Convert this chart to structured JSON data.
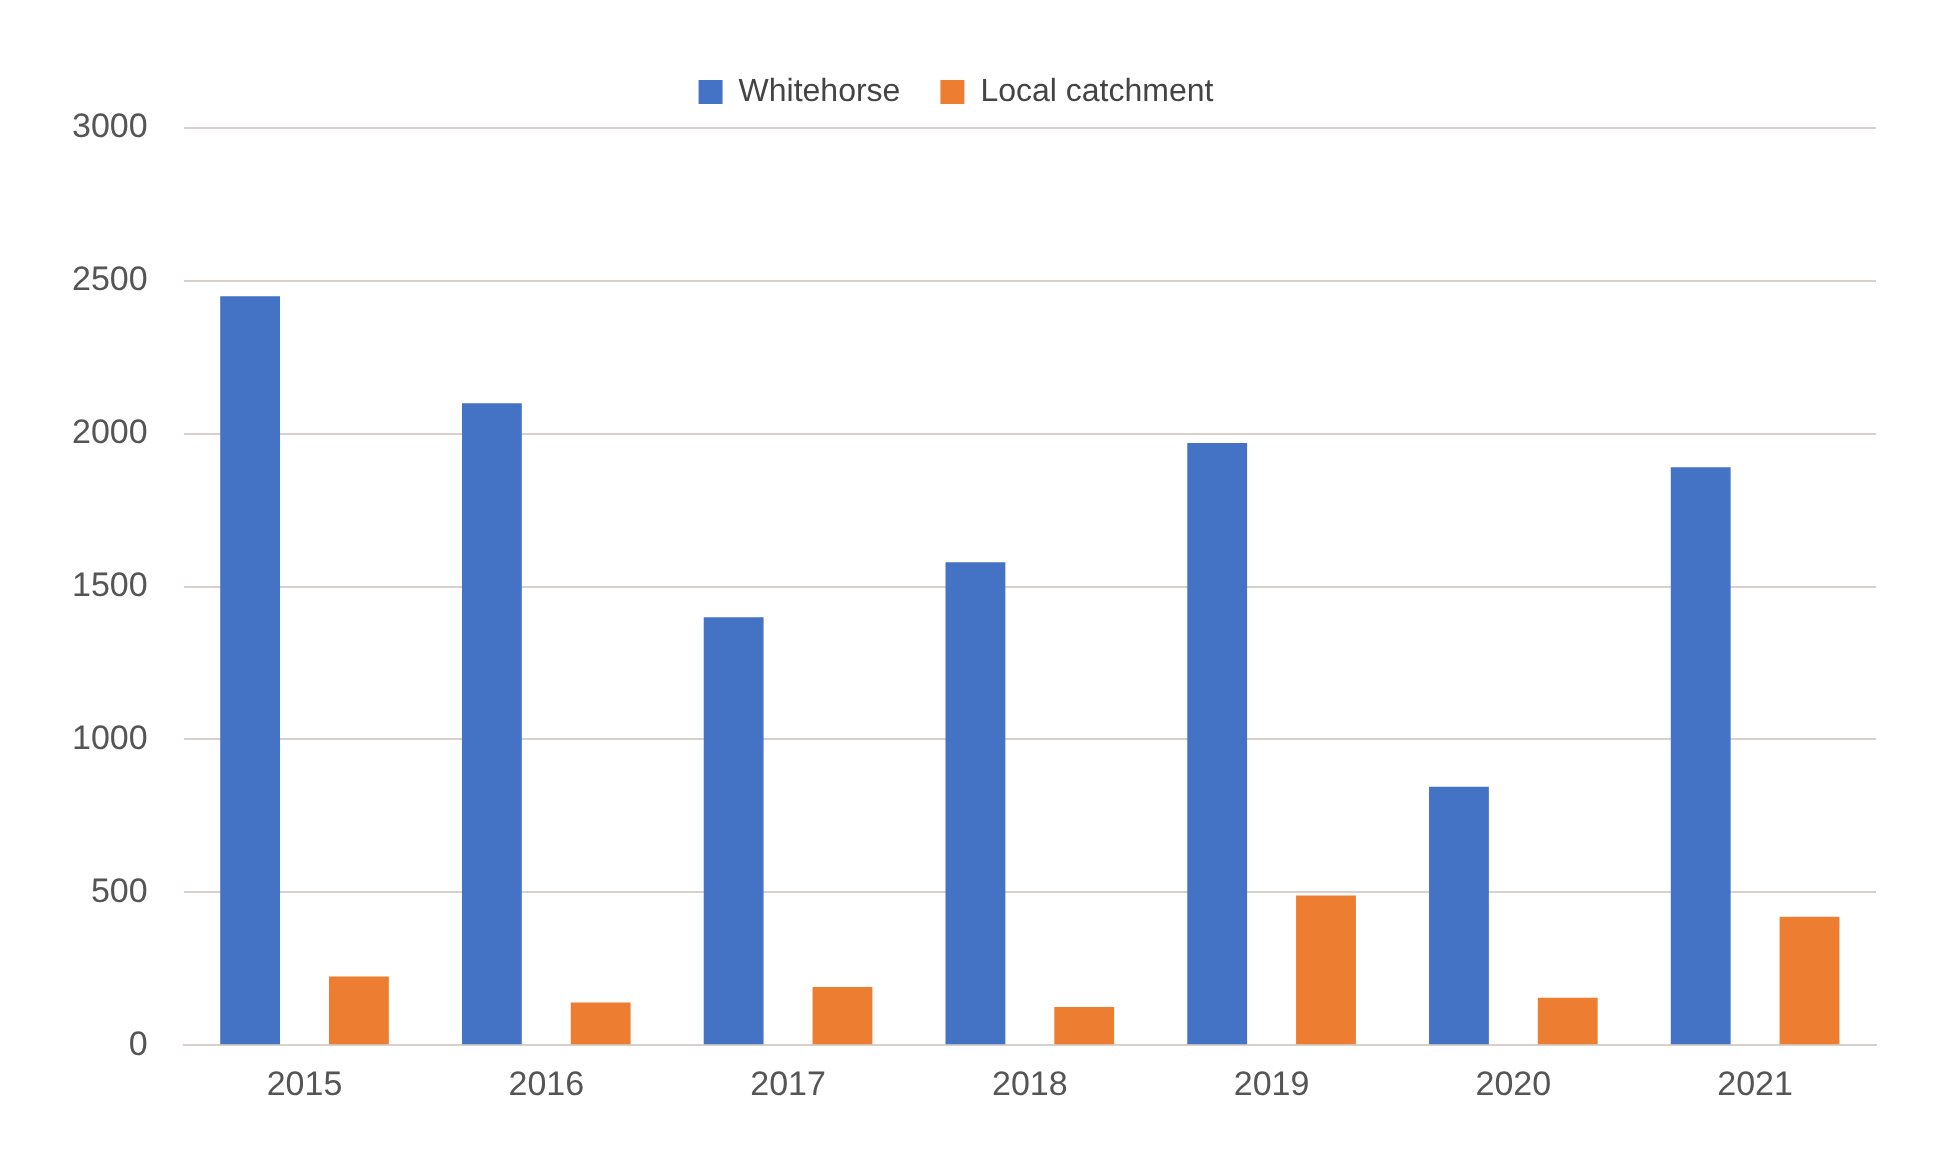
{
  "chart_data": {
    "type": "bar",
    "categories": [
      "2015",
      "2016",
      "2017",
      "2018",
      "2019",
      "2020",
      "2021"
    ],
    "series": [
      {
        "name": "Whitehorse",
        "color": "#4472c4",
        "values": [
          2450,
          2100,
          1400,
          1580,
          1970,
          845,
          1890
        ]
      },
      {
        "name": "Local catchment",
        "color": "#ed7d31",
        "values": [
          225,
          140,
          190,
          125,
          490,
          155,
          420
        ]
      }
    ],
    "ylim": [
      0,
      3000
    ],
    "yticks": [
      0,
      500,
      1000,
      1500,
      2000,
      2500,
      3000
    ],
    "grid": "y",
    "legend": "top"
  }
}
